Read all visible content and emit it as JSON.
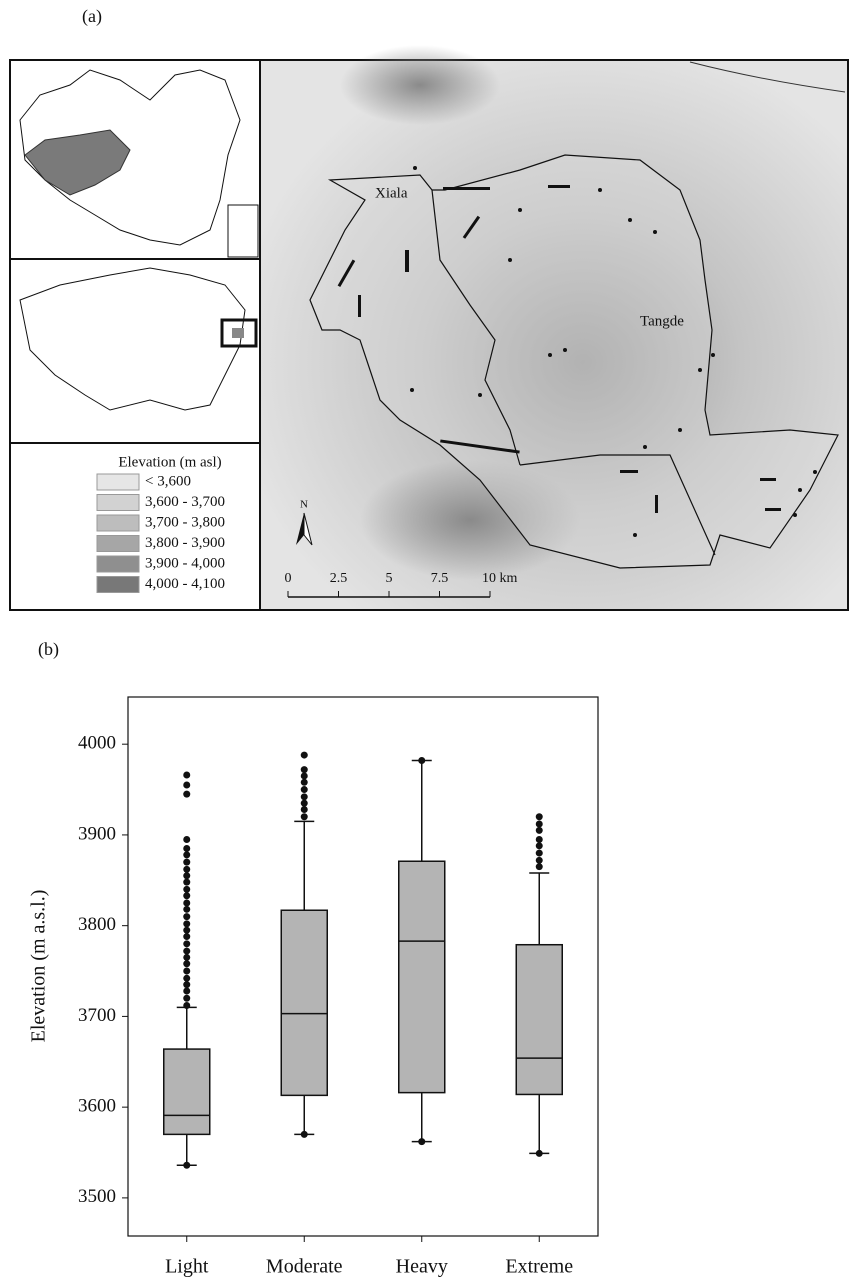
{
  "figure": {
    "panel_a_label": "(a)",
    "panel_b_label": "(b)"
  },
  "map": {
    "region_labels": [
      "Xiala",
      "Tangde"
    ],
    "north": "N",
    "legend": {
      "title": "Elevation (m asl)",
      "items": [
        {
          "label": "< 3,600",
          "color": "#e6e6e6"
        },
        {
          "label": "3,600 - 3,700",
          "color": "#d2d2d2"
        },
        {
          "label": "3,700 - 3,800",
          "color": "#bdbdbd"
        },
        {
          "label": "3,800 - 3,900",
          "color": "#a6a6a6"
        },
        {
          "label": "3,900 - 4,000",
          "color": "#8f8f8f"
        },
        {
          "label": "4,000 - 4,100",
          "color": "#787878"
        }
      ]
    },
    "scale_bar": [
      "0",
      "2.5",
      "5",
      "7.5",
      "10 km"
    ]
  },
  "chart_data": {
    "type": "box",
    "y_label": "Elevation (m a.s.l.)",
    "categories": [
      "Light",
      "Moderate",
      "Heavy",
      "Extreme"
    ],
    "color": "#b4b4b4",
    "boxes": [
      {
        "low": 3536,
        "q1": 3570,
        "median": 3591,
        "q3": 3664,
        "high": 3710,
        "outliers": [
          3536,
          3712,
          3720,
          3728,
          3735,
          3742,
          3750,
          3758,
          3765,
          3772,
          3780,
          3788,
          3795,
          3802,
          3810,
          3818,
          3825,
          3833,
          3840,
          3848,
          3855,
          3862,
          3870,
          3878,
          3885,
          3895,
          3945,
          3955,
          3966
        ]
      },
      {
        "low": 3570,
        "q1": 3613,
        "median": 3703,
        "q3": 3817,
        "high": 3915,
        "outliers": [
          3570,
          3920,
          3928,
          3935,
          3942,
          3950,
          3958,
          3965,
          3972,
          3988
        ]
      },
      {
        "low": 3562,
        "q1": 3616,
        "median": 3783,
        "q3": 3871,
        "high": 3982,
        "outliers": [
          3562,
          3982
        ]
      },
      {
        "low": 3549,
        "q1": 3614,
        "median": 3654,
        "q3": 3779,
        "high": 3858,
        "outliers": [
          3549,
          3865,
          3872,
          3880,
          3888,
          3895,
          3905,
          3912,
          3920
        ]
      }
    ],
    "ylim": [
      3458,
      4052
    ],
    "yticks": [
      3500,
      3600,
      3700,
      3800,
      3900,
      4000
    ]
  }
}
